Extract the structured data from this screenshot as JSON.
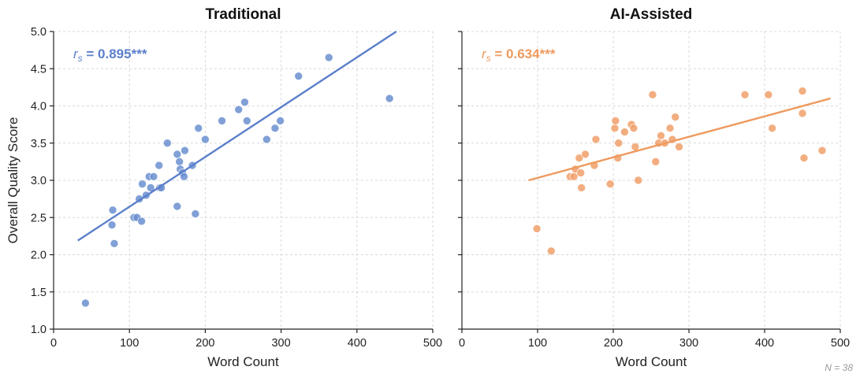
{
  "chart_data": [
    {
      "type": "scatter",
      "title": "Traditional",
      "xlabel": "Word Count",
      "ylabel": "Overall Quality Score",
      "xlim": [
        0,
        500
      ],
      "ylim": [
        1.0,
        5.0
      ],
      "xticks": [
        "0",
        "100",
        "200",
        "300",
        "400",
        "500"
      ],
      "yticks": [
        "1.0",
        "1.5",
        "2.0",
        "2.5",
        "3.0",
        "3.5",
        "4.0",
        "4.5",
        "5.0"
      ],
      "grid": true,
      "color": "#6b8fd0",
      "line_color": "#5b7fcb",
      "annotation_r": "r",
      "annotation_sub": "s",
      "annotation_value": " = 0.895***",
      "trend": {
        "x": [
          32,
          452
        ],
        "y": [
          2.19,
          5.0
        ]
      },
      "points": [
        {
          "x": 42,
          "y": 1.35
        },
        {
          "x": 77,
          "y": 2.4
        },
        {
          "x": 78,
          "y": 2.6
        },
        {
          "x": 80,
          "y": 2.15
        },
        {
          "x": 106,
          "y": 2.5
        },
        {
          "x": 110,
          "y": 2.5
        },
        {
          "x": 113,
          "y": 2.75
        },
        {
          "x": 116,
          "y": 2.45
        },
        {
          "x": 117,
          "y": 2.95
        },
        {
          "x": 122,
          "y": 2.8
        },
        {
          "x": 126,
          "y": 3.05
        },
        {
          "x": 128,
          "y": 2.9
        },
        {
          "x": 132,
          "y": 3.05
        },
        {
          "x": 139,
          "y": 3.2
        },
        {
          "x": 140,
          "y": 2.9
        },
        {
          "x": 142,
          "y": 2.9
        },
        {
          "x": 150,
          "y": 3.5
        },
        {
          "x": 163,
          "y": 3.35
        },
        {
          "x": 163,
          "y": 2.65
        },
        {
          "x": 166,
          "y": 3.25
        },
        {
          "x": 167,
          "y": 3.15
        },
        {
          "x": 170,
          "y": 3.1
        },
        {
          "x": 172,
          "y": 3.05
        },
        {
          "x": 173,
          "y": 3.4
        },
        {
          "x": 183,
          "y": 3.2
        },
        {
          "x": 187,
          "y": 2.55
        },
        {
          "x": 191,
          "y": 3.7
        },
        {
          "x": 200,
          "y": 3.55
        },
        {
          "x": 222,
          "y": 3.8
        },
        {
          "x": 244,
          "y": 3.95
        },
        {
          "x": 252,
          "y": 4.05
        },
        {
          "x": 255,
          "y": 3.8
        },
        {
          "x": 281,
          "y": 3.55
        },
        {
          "x": 292,
          "y": 3.7
        },
        {
          "x": 299,
          "y": 3.8
        },
        {
          "x": 323,
          "y": 4.4
        },
        {
          "x": 363,
          "y": 4.65
        },
        {
          "x": 443,
          "y": 4.1
        }
      ]
    },
    {
      "type": "scatter",
      "title": "AI-Assisted",
      "xlabel": "Word Count",
      "ylabel": "",
      "xlim": [
        0,
        500
      ],
      "ylim": [
        1.0,
        5.0
      ],
      "xticks": [
        "0",
        "100",
        "200",
        "300",
        "400",
        "500"
      ],
      "yticks": [],
      "grid": true,
      "color": "#f0a06a",
      "line_color": "#ee9a5e",
      "annotation_r": "r",
      "annotation_sub": "s",
      "annotation_value": " = 0.634***",
      "trend": {
        "x": [
          88,
          487
        ],
        "y": [
          3.0,
          4.1
        ]
      },
      "points": [
        {
          "x": 99,
          "y": 2.35
        },
        {
          "x": 118,
          "y": 2.05
        },
        {
          "x": 143,
          "y": 3.05
        },
        {
          "x": 148,
          "y": 3.05
        },
        {
          "x": 150,
          "y": 3.15
        },
        {
          "x": 155,
          "y": 3.3
        },
        {
          "x": 157,
          "y": 3.1
        },
        {
          "x": 158,
          "y": 2.9
        },
        {
          "x": 163,
          "y": 3.35
        },
        {
          "x": 175,
          "y": 3.2
        },
        {
          "x": 177,
          "y": 3.55
        },
        {
          "x": 196,
          "y": 2.95
        },
        {
          "x": 202,
          "y": 3.7
        },
        {
          "x": 203,
          "y": 3.8
        },
        {
          "x": 206,
          "y": 3.3
        },
        {
          "x": 207,
          "y": 3.5
        },
        {
          "x": 215,
          "y": 3.65
        },
        {
          "x": 224,
          "y": 3.75
        },
        {
          "x": 227,
          "y": 3.7
        },
        {
          "x": 229,
          "y": 3.45
        },
        {
          "x": 233,
          "y": 3.0
        },
        {
          "x": 252,
          "y": 4.15
        },
        {
          "x": 256,
          "y": 3.25
        },
        {
          "x": 260,
          "y": 3.5
        },
        {
          "x": 263,
          "y": 3.6
        },
        {
          "x": 268,
          "y": 3.5
        },
        {
          "x": 275,
          "y": 3.7
        },
        {
          "x": 278,
          "y": 3.55
        },
        {
          "x": 282,
          "y": 3.85
        },
        {
          "x": 287,
          "y": 3.45
        },
        {
          "x": 374,
          "y": 4.15
        },
        {
          "x": 405,
          "y": 4.15
        },
        {
          "x": 410,
          "y": 3.7
        },
        {
          "x": 450,
          "y": 4.2
        },
        {
          "x": 450,
          "y": 3.9
        },
        {
          "x": 452,
          "y": 3.3
        },
        {
          "x": 476,
          "y": 3.4
        }
      ]
    }
  ],
  "footnote": "N = 38"
}
